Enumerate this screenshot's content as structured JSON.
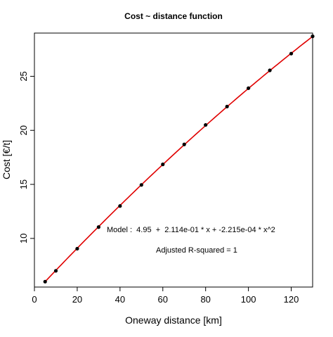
{
  "chart_data": {
    "type": "scatter",
    "title": "Cost ~ distance function",
    "xlabel": "Oneway distance [km]",
    "ylabel": "Cost [€/t]",
    "xlim": [
      0,
      130
    ],
    "ylim": [
      5.5,
      29
    ],
    "xticks": [
      0,
      20,
      40,
      60,
      80,
      100,
      120
    ],
    "yticks": [
      10,
      15,
      20,
      25
    ],
    "grid": false,
    "points": {
      "x": [
        5,
        10,
        20,
        30,
        40,
        50,
        60,
        70,
        80,
        90,
        100,
        110,
        120,
        130
      ],
      "y": [
        6.0,
        7.0,
        9.05,
        11.05,
        13.0,
        14.95,
        16.85,
        18.7,
        20.5,
        22.2,
        23.9,
        25.55,
        27.1,
        28.7
      ]
    },
    "fit": {
      "intercept": 4.95,
      "b1": 0.2114,
      "b2": -0.0002215,
      "color": "#e00000"
    },
    "point_color": "#000000",
    "annotations": {
      "model": "Model :  4.95  +  2.114e-01 * x + -2.215e-04 * x^2",
      "rsq": "Adjusted R-squared = 1"
    }
  }
}
